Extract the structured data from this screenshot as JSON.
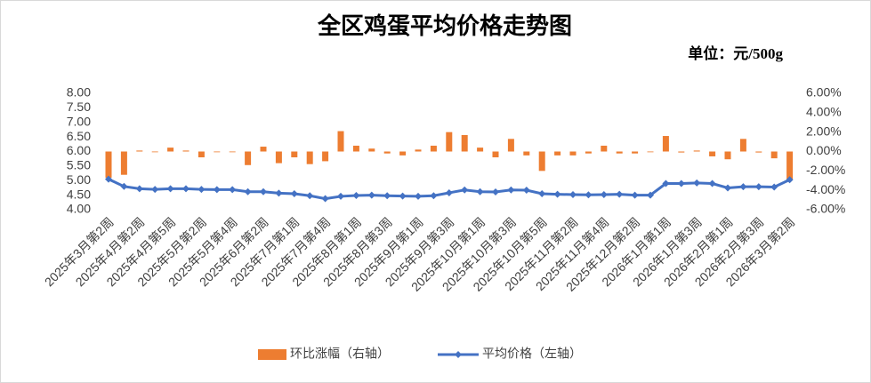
{
  "chart_data": {
    "type": "bar-line",
    "title": "全区鸡蛋平均价格走势图",
    "subtitle": "单位：元/500g",
    "categories": [
      "2025年3月第2周",
      null,
      "2025年4月第2周",
      null,
      "2025年4月第5周",
      null,
      "2025年5月第2周",
      null,
      "2025年5月第4周",
      null,
      "2025年6月第2周",
      null,
      "2025年7月第1周",
      null,
      "2025年7月第4周",
      null,
      "2025年8月第1周",
      null,
      "2025年8月第3周",
      null,
      "2025年9月第1周",
      null,
      "2025年9月第3周",
      null,
      "2025年10月第1周",
      null,
      "2025年10月第3周",
      null,
      "2025年10月第5周",
      null,
      "2025年11月第2周",
      null,
      "2025年11月第4周",
      null,
      "2025年12月第2周",
      null,
      "2026年1月第1周",
      null,
      "2026年1月第3周",
      null,
      "2026年2月第1周",
      null,
      "2026年2月第3周",
      null,
      "2026年3月第2周"
    ],
    "series": [
      {
        "name": "环比涨幅（右轴）",
        "type": "bar",
        "axis": "y2",
        "color": "#ed7d31",
        "values": [
          -2.7,
          -2.4,
          0.1,
          0,
          0.4,
          0.1,
          -0.6,
          0,
          0,
          -1.4,
          0.5,
          -1.2,
          -0.6,
          -1.3,
          -1.0,
          2.1,
          0.6,
          0.3,
          -0.2,
          -0.4,
          0.2,
          0.6,
          2.0,
          1.7,
          0.4,
          -0.6,
          1.3,
          -0.4,
          -2.0,
          -0.4,
          -0.4,
          -0.2,
          0.6,
          -0.2,
          -0.2,
          0,
          1.6,
          -0.1,
          0.1,
          -0.5,
          -0.8,
          1.3,
          -0.1,
          -0.7,
          -2.9
        ]
      },
      {
        "name": "平均价格（左轴）",
        "type": "line",
        "axis": "y",
        "color": "#4472c4",
        "values": [
          5.05,
          4.8,
          4.72,
          4.7,
          4.72,
          4.72,
          4.7,
          4.69,
          4.69,
          4.62,
          4.62,
          4.57,
          4.55,
          4.48,
          4.38,
          4.46,
          4.49,
          4.5,
          4.48,
          4.47,
          4.46,
          4.48,
          4.58,
          4.68,
          4.62,
          4.61,
          4.68,
          4.67,
          4.55,
          4.53,
          4.52,
          4.51,
          4.52,
          4.53,
          4.5,
          4.5,
          4.9,
          4.9,
          4.92,
          4.9,
          4.75,
          4.79,
          4.79,
          4.78,
          5.03
        ]
      }
    ],
    "ylim": [
      4,
      8
    ],
    "yticks": [
      {
        "value": 4,
        "label": "4.00"
      },
      {
        "value": 4.5,
        "label": "4.50"
      },
      {
        "value": 5,
        "label": "5.00"
      },
      {
        "value": 5.5,
        "label": "5.50"
      },
      {
        "value": 6,
        "label": "6.00"
      },
      {
        "value": 6.5,
        "label": "6.50"
      },
      {
        "value": 7,
        "label": "7.00"
      },
      {
        "value": 7.5,
        "label": "7.50"
      },
      {
        "value": 8,
        "label": "8.00"
      }
    ],
    "y2lim": [
      -6,
      6
    ],
    "y2ticks": [
      {
        "value": -6,
        "label": "-6.00%"
      },
      {
        "value": -4,
        "label": "-4.00%"
      },
      {
        "value": -2,
        "label": "-2.00%"
      },
      {
        "value": 0,
        "label": "0.00%"
      },
      {
        "value": 2,
        "label": "2.00%"
      },
      {
        "value": 4,
        "label": "4.00%"
      },
      {
        "value": 6,
        "label": "6.00%"
      }
    ],
    "legend": "bottom",
    "grid": false
  }
}
